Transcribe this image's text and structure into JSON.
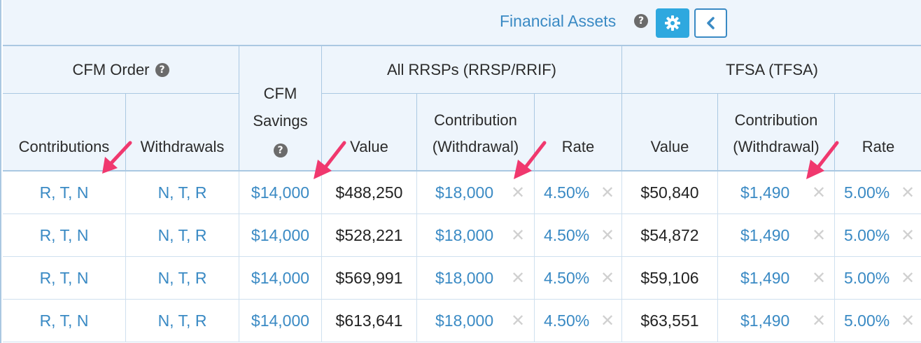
{
  "header": {
    "title": "Financial Assets",
    "help_glyph": "?"
  },
  "groups": {
    "cfm_order": "CFM Order",
    "cfm_savings_line1": "CFM",
    "cfm_savings_line2": "Savings",
    "rrsp": "All RRSPs (RRSP/RRIF)",
    "tfsa": "TFSA (TFSA)"
  },
  "columns": {
    "contributions": "Contributions",
    "withdrawals": "Withdrawals",
    "value": "Value",
    "contribution_line1": "Contribution",
    "contribution_line2": "(Withdrawal)",
    "rate": "Rate"
  },
  "rows": [
    {
      "contrib_order": "R, T, N",
      "withdraw_order": "N, T, R",
      "cfm_savings": "$14,000",
      "rrsp_value": "$488,250",
      "rrsp_contrib": "$18,000",
      "rrsp_rate": "4.50%",
      "tfsa_value": "$50,840",
      "tfsa_contrib": "$1,490",
      "tfsa_rate": "5.00%"
    },
    {
      "contrib_order": "R, T, N",
      "withdraw_order": "N, T, R",
      "cfm_savings": "$14,000",
      "rrsp_value": "$528,221",
      "rrsp_contrib": "$18,000",
      "rrsp_rate": "4.50%",
      "tfsa_value": "$54,872",
      "tfsa_contrib": "$1,490",
      "tfsa_rate": "5.00%"
    },
    {
      "contrib_order": "R, T, N",
      "withdraw_order": "N, T, R",
      "cfm_savings": "$14,000",
      "rrsp_value": "$569,991",
      "rrsp_contrib": "$18,000",
      "rrsp_rate": "4.50%",
      "tfsa_value": "$59,106",
      "tfsa_contrib": "$1,490",
      "tfsa_rate": "5.00%"
    },
    {
      "contrib_order": "R, T, N",
      "withdraw_order": "N, T, R",
      "cfm_savings": "$14,000",
      "rrsp_value": "$613,641",
      "rrsp_contrib": "$18,000",
      "rrsp_rate": "4.50%",
      "tfsa_value": "$63,551",
      "tfsa_contrib": "$1,490",
      "tfsa_rate": "5.00%"
    }
  ],
  "icons": {
    "help": "help-circle-icon",
    "gear": "gear-icon",
    "back": "chevron-left-icon",
    "clear": "clear-x-icon",
    "annotation": "pink-arrow-icon"
  },
  "colors": {
    "link": "#3a8ac4",
    "header_bg": "#eef5fc",
    "border": "#aac8e2",
    "gear_button": "#2ea8df",
    "annotation_arrow": "#f0386e"
  }
}
